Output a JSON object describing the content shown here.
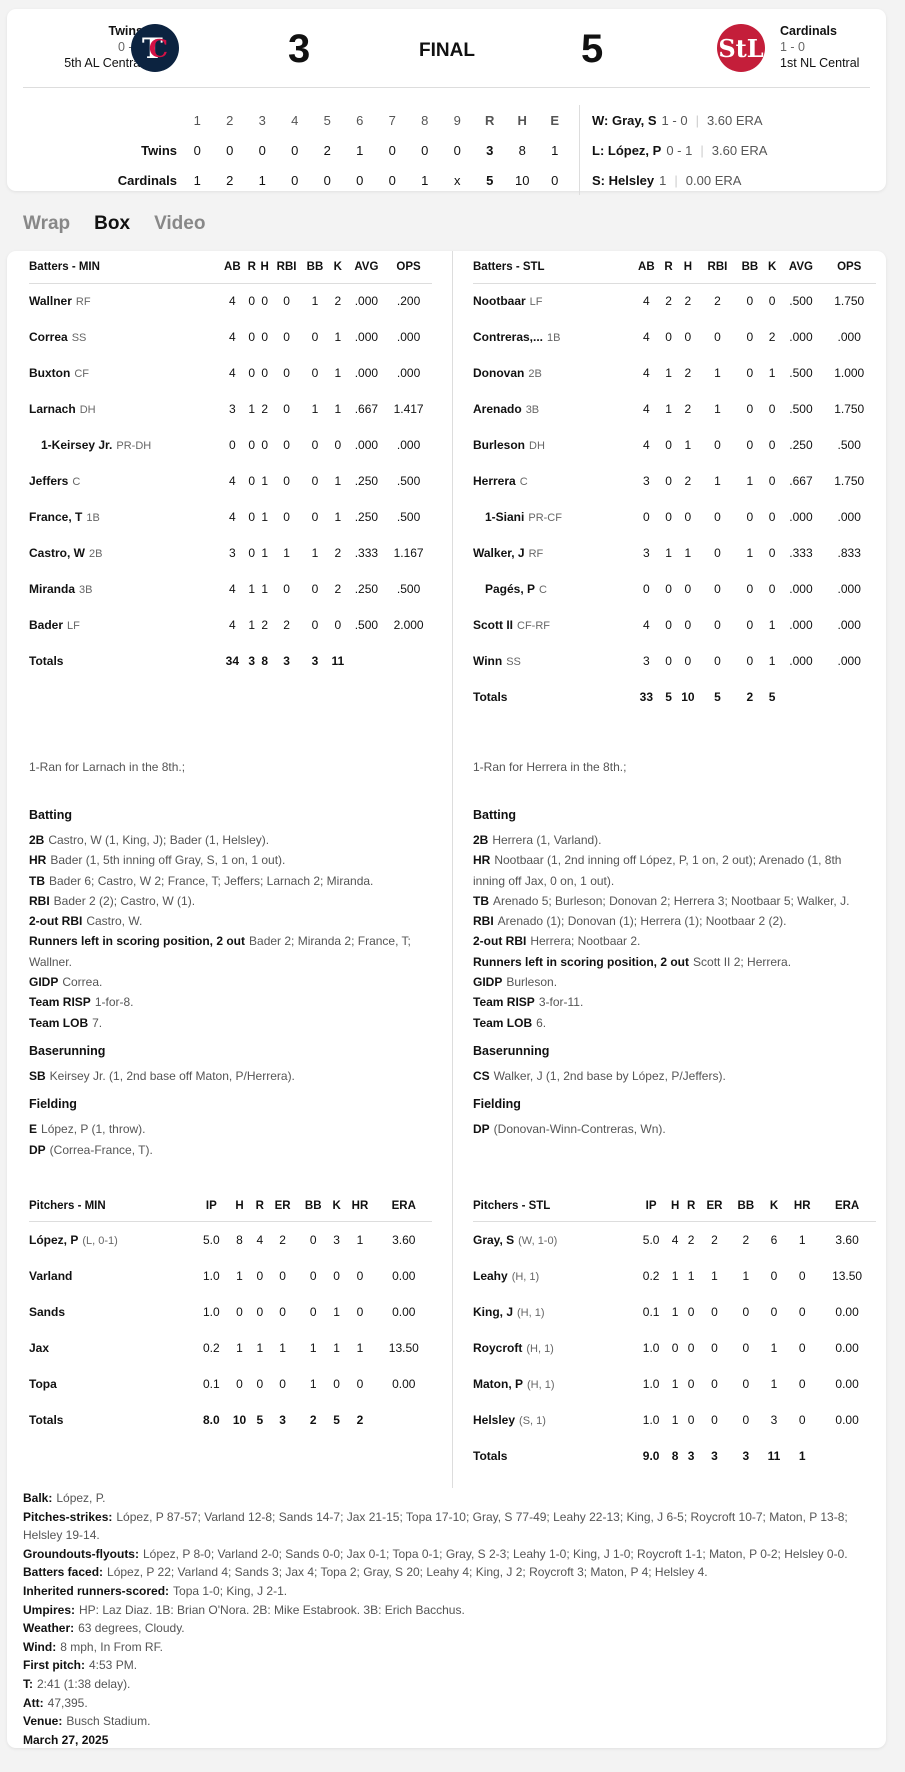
{
  "header": {
    "away": {
      "name": "Twins",
      "record": "0 - 1",
      "standing": "5th AL Central",
      "score": "3",
      "logo": "TC"
    },
    "home": {
      "name": "Cardinals",
      "record": "1 - 0",
      "standing": "1st NL Central",
      "score": "5",
      "logo": "StL"
    },
    "status": "FINAL",
    "linescore": {
      "headers": [
        "1",
        "2",
        "3",
        "4",
        "5",
        "6",
        "7",
        "8",
        "9",
        "R",
        "H",
        "E"
      ],
      "rows": [
        {
          "team": "Twins",
          "cells": [
            "0",
            "0",
            "0",
            "0",
            "2",
            "1",
            "0",
            "0",
            "0",
            "3",
            "8",
            "1"
          ]
        },
        {
          "team": "Cardinals",
          "cells": [
            "1",
            "2",
            "1",
            "0",
            "0",
            "0",
            "0",
            "1",
            "x",
            "5",
            "10",
            "0"
          ]
        }
      ]
    },
    "decisions": [
      {
        "label": "W: Gray, S",
        "record": "1 - 0",
        "era": "3.60 ERA"
      },
      {
        "label": "L: López, P",
        "record": "0 - 1",
        "era": "3.60 ERA"
      },
      {
        "label": "S: Helsley",
        "record": "1",
        "era": "0.00 ERA"
      }
    ]
  },
  "tabs": [
    {
      "label": "Wrap",
      "active": false
    },
    {
      "label": "Box",
      "active": true
    },
    {
      "label": "Video",
      "active": false
    }
  ],
  "batting_columns": [
    "AB",
    "R",
    "H",
    "RBI",
    "BB",
    "K",
    "AVG",
    "OPS"
  ],
  "pitching_columns": [
    "IP",
    "H",
    "R",
    "ER",
    "BB",
    "K",
    "HR",
    "ERA"
  ],
  "away_batting": {
    "title": "Batters - MIN",
    "rows": [
      {
        "name": "Wallner",
        "pos": "RF",
        "stats": [
          "4",
          "0",
          "0",
          "0",
          "1",
          "2",
          ".000",
          ".200"
        ]
      },
      {
        "name": "Correa",
        "pos": "SS",
        "stats": [
          "4",
          "0",
          "0",
          "0",
          "0",
          "1",
          ".000",
          ".000"
        ]
      },
      {
        "name": "Buxton",
        "pos": "CF",
        "stats": [
          "4",
          "0",
          "0",
          "0",
          "0",
          "1",
          ".000",
          ".000"
        ]
      },
      {
        "name": "Larnach",
        "pos": "DH",
        "stats": [
          "3",
          "1",
          "2",
          "0",
          "1",
          "1",
          ".667",
          "1.417"
        ]
      },
      {
        "name": "1-Keirsey Jr.",
        "pos": "PR-DH",
        "sub": true,
        "stats": [
          "0",
          "0",
          "0",
          "0",
          "0",
          "0",
          ".000",
          ".000"
        ]
      },
      {
        "name": "Jeffers",
        "pos": "C",
        "stats": [
          "4",
          "0",
          "1",
          "0",
          "0",
          "1",
          ".250",
          ".500"
        ]
      },
      {
        "name": "France, T",
        "pos": "1B",
        "stats": [
          "4",
          "0",
          "1",
          "0",
          "0",
          "1",
          ".250",
          ".500"
        ]
      },
      {
        "name": "Castro, W",
        "pos": "2B",
        "stats": [
          "3",
          "0",
          "1",
          "1",
          "1",
          "2",
          ".333",
          "1.167"
        ]
      },
      {
        "name": "Miranda",
        "pos": "3B",
        "stats": [
          "4",
          "1",
          "1",
          "0",
          "0",
          "2",
          ".250",
          ".500"
        ]
      },
      {
        "name": "Bader",
        "pos": "LF",
        "stats": [
          "4",
          "1",
          "2",
          "2",
          "0",
          "0",
          ".500",
          "2.000"
        ]
      }
    ],
    "totals": {
      "name": "Totals",
      "stats": [
        "34",
        "3",
        "8",
        "3",
        "3",
        "11",
        "",
        ""
      ]
    }
  },
  "home_batting": {
    "title": "Batters - STL",
    "rows": [
      {
        "name": "Nootbaar",
        "pos": "LF",
        "stats": [
          "4",
          "2",
          "2",
          "2",
          "0",
          "0",
          ".500",
          "1.750"
        ]
      },
      {
        "name": "Contreras,...",
        "pos": "1B",
        "stats": [
          "4",
          "0",
          "0",
          "0",
          "0",
          "2",
          ".000",
          ".000"
        ]
      },
      {
        "name": "Donovan",
        "pos": "2B",
        "stats": [
          "4",
          "1",
          "2",
          "1",
          "0",
          "1",
          ".500",
          "1.000"
        ]
      },
      {
        "name": "Arenado",
        "pos": "3B",
        "stats": [
          "4",
          "1",
          "2",
          "1",
          "0",
          "0",
          ".500",
          "1.750"
        ]
      },
      {
        "name": "Burleson",
        "pos": "DH",
        "stats": [
          "4",
          "0",
          "1",
          "0",
          "0",
          "0",
          ".250",
          ".500"
        ]
      },
      {
        "name": "Herrera",
        "pos": "C",
        "stats": [
          "3",
          "0",
          "2",
          "1",
          "1",
          "0",
          ".667",
          "1.750"
        ]
      },
      {
        "name": "1-Siani",
        "pos": "PR-CF",
        "sub": true,
        "stats": [
          "0",
          "0",
          "0",
          "0",
          "0",
          "0",
          ".000",
          ".000"
        ]
      },
      {
        "name": "Walker, J",
        "pos": "RF",
        "stats": [
          "3",
          "1",
          "1",
          "0",
          "1",
          "0",
          ".333",
          ".833"
        ]
      },
      {
        "name": "Pagés, P",
        "pos": "C",
        "sub": true,
        "stats": [
          "0",
          "0",
          "0",
          "0",
          "0",
          "0",
          ".000",
          ".000"
        ]
      },
      {
        "name": "Scott II",
        "pos": "CF-RF",
        "stats": [
          "4",
          "0",
          "0",
          "0",
          "0",
          "1",
          ".000",
          ".000"
        ]
      },
      {
        "name": "Winn",
        "pos": "SS",
        "stats": [
          "3",
          "0",
          "0",
          "0",
          "0",
          "1",
          ".000",
          ".000"
        ]
      }
    ],
    "totals": {
      "name": "Totals",
      "stats": [
        "33",
        "5",
        "10",
        "5",
        "2",
        "5",
        "",
        ""
      ]
    }
  },
  "away_notes": {
    "ran": "1-Ran for Larnach in the 8th.;",
    "sections": [
      {
        "title": "Batting",
        "items": [
          {
            "k": "2B",
            "v": "Castro, W (1, King, J); Bader (1, Helsley)."
          },
          {
            "k": "HR",
            "v": "Bader (1, 5th inning off Gray, S, 1 on, 1 out)."
          },
          {
            "k": "TB",
            "v": "Bader 6; Castro, W 2; France, T; Jeffers; Larnach 2; Miranda."
          },
          {
            "k": "RBI",
            "v": "Bader 2 (2); Castro, W (1)."
          },
          {
            "k": "2-out RBI",
            "v": "Castro, W."
          },
          {
            "k": "Runners left in scoring position, 2 out",
            "v": "Bader 2; Miranda 2; France, T; Wallner."
          },
          {
            "k": "GIDP",
            "v": "Correa."
          },
          {
            "k": "Team RISP",
            "v": "1-for-8."
          },
          {
            "k": "Team LOB",
            "v": "7."
          }
        ]
      },
      {
        "title": "Baserunning",
        "items": [
          {
            "k": "SB",
            "v": "Keirsey Jr. (1, 2nd base off Maton, P/Herrera)."
          }
        ]
      },
      {
        "title": "Fielding",
        "items": [
          {
            "k": "E",
            "v": "López, P (1, throw)."
          },
          {
            "k": "DP",
            "v": "(Correa-France, T)."
          }
        ]
      }
    ]
  },
  "home_notes": {
    "ran": "1-Ran for Herrera in the 8th.;",
    "sections": [
      {
        "title": "Batting",
        "items": [
          {
            "k": "2B",
            "v": "Herrera (1, Varland)."
          },
          {
            "k": "HR",
            "v": "Nootbaar (1, 2nd inning off López, P, 1 on, 2 out); Arenado (1, 8th inning off Jax, 0 on, 1 out)."
          },
          {
            "k": "TB",
            "v": "Arenado 5; Burleson; Donovan 2; Herrera 3; Nootbaar 5; Walker, J."
          },
          {
            "k": "RBI",
            "v": "Arenado (1); Donovan (1); Herrera (1); Nootbaar 2 (2)."
          },
          {
            "k": "2-out RBI",
            "v": "Herrera; Nootbaar 2."
          },
          {
            "k": "Runners left in scoring position, 2 out",
            "v": "Scott II 2; Herrera."
          },
          {
            "k": "GIDP",
            "v": "Burleson."
          },
          {
            "k": "Team RISP",
            "v": "3-for-11."
          },
          {
            "k": "Team LOB",
            "v": "6."
          }
        ]
      },
      {
        "title": "Baserunning",
        "items": [
          {
            "k": "CS",
            "v": "Walker, J (1, 2nd base by López, P/Jeffers)."
          }
        ]
      },
      {
        "title": "Fielding",
        "items": [
          {
            "k": "DP",
            "v": "(Donovan-Winn-Contreras, Wn)."
          }
        ]
      }
    ]
  },
  "away_pitching": {
    "title": "Pitchers - MIN",
    "rows": [
      {
        "name": "López, P",
        "pos": "(L, 0-1)",
        "stats": [
          "5.0",
          "8",
          "4",
          "2",
          "0",
          "3",
          "1",
          "3.60"
        ]
      },
      {
        "name": "Varland",
        "pos": "",
        "stats": [
          "1.0",
          "1",
          "0",
          "0",
          "0",
          "0",
          "0",
          "0.00"
        ]
      },
      {
        "name": "Sands",
        "pos": "",
        "stats": [
          "1.0",
          "0",
          "0",
          "0",
          "0",
          "1",
          "0",
          "0.00"
        ]
      },
      {
        "name": "Jax",
        "pos": "",
        "stats": [
          "0.2",
          "1",
          "1",
          "1",
          "1",
          "1",
          "1",
          "13.50"
        ]
      },
      {
        "name": "Topa",
        "pos": "",
        "stats": [
          "0.1",
          "0",
          "0",
          "0",
          "1",
          "0",
          "0",
          "0.00"
        ]
      }
    ],
    "totals": {
      "name": "Totals",
      "stats": [
        "8.0",
        "10",
        "5",
        "3",
        "2",
        "5",
        "2",
        ""
      ]
    }
  },
  "home_pitching": {
    "title": "Pitchers - STL",
    "rows": [
      {
        "name": "Gray, S",
        "pos": "(W, 1-0)",
        "stats": [
          "5.0",
          "4",
          "2",
          "2",
          "2",
          "6",
          "1",
          "3.60"
        ]
      },
      {
        "name": "Leahy",
        "pos": "(H, 1)",
        "stats": [
          "0.2",
          "1",
          "1",
          "1",
          "1",
          "0",
          "0",
          "13.50"
        ]
      },
      {
        "name": "King, J",
        "pos": "(H, 1)",
        "stats": [
          "0.1",
          "1",
          "0",
          "0",
          "0",
          "0",
          "0",
          "0.00"
        ]
      },
      {
        "name": "Roycroft",
        "pos": "(H, 1)",
        "stats": [
          "1.0",
          "0",
          "0",
          "0",
          "0",
          "1",
          "0",
          "0.00"
        ]
      },
      {
        "name": "Maton, P",
        "pos": "(H, 1)",
        "stats": [
          "1.0",
          "1",
          "0",
          "0",
          "0",
          "1",
          "0",
          "0.00"
        ]
      },
      {
        "name": "Helsley",
        "pos": "(S, 1)",
        "stats": [
          "1.0",
          "1",
          "0",
          "0",
          "0",
          "3",
          "0",
          "0.00"
        ]
      }
    ],
    "totals": {
      "name": "Totals",
      "stats": [
        "9.0",
        "8",
        "3",
        "3",
        "3",
        "11",
        "1",
        ""
      ]
    }
  },
  "game_info": [
    {
      "k": "Balk:",
      "v": "López, P."
    },
    {
      "k": "Pitches-strikes:",
      "v": "López, P 87-57; Varland 12-8; Sands 14-7; Jax 21-15; Topa 17-10; Gray, S 77-49; Leahy 22-13; King, J 6-5; Roycroft 10-7; Maton, P 13-8; Helsley 19-14."
    },
    {
      "k": "Groundouts-flyouts:",
      "v": "López, P 8-0; Varland 2-0; Sands 0-0; Jax 0-1; Topa 0-1; Gray, S 2-3; Leahy 1-0; King, J 1-0; Roycroft 1-1; Maton, P 0-2; Helsley 0-0."
    },
    {
      "k": "Batters faced:",
      "v": "López, P 22; Varland 4; Sands 3; Jax 4; Topa 2; Gray, S 20; Leahy 4; King, J 2; Roycroft 3; Maton, P 4; Helsley 4."
    },
    {
      "k": "Inherited runners-scored:",
      "v": "Topa 1-0; King, J 2-1."
    },
    {
      "k": "Umpires:",
      "v": "HP: Laz Diaz. 1B: Brian O'Nora. 2B: Mike Estabrook. 3B: Erich Bacchus."
    },
    {
      "k": "Weather:",
      "v": "63 degrees, Cloudy."
    },
    {
      "k": "Wind:",
      "v": "8 mph, In From RF."
    },
    {
      "k": "First pitch:",
      "v": "4:53 PM."
    },
    {
      "k": "T:",
      "v": "2:41 (1:38 delay)."
    },
    {
      "k": "Att:",
      "v": "47,395."
    },
    {
      "k": "Venue:",
      "v": "Busch Stadium."
    },
    {
      "k": "March 27, 2025",
      "v": ""
    }
  ],
  "colors": {
    "twins": "#0c2340",
    "cardinals": "#c41e3a"
  }
}
